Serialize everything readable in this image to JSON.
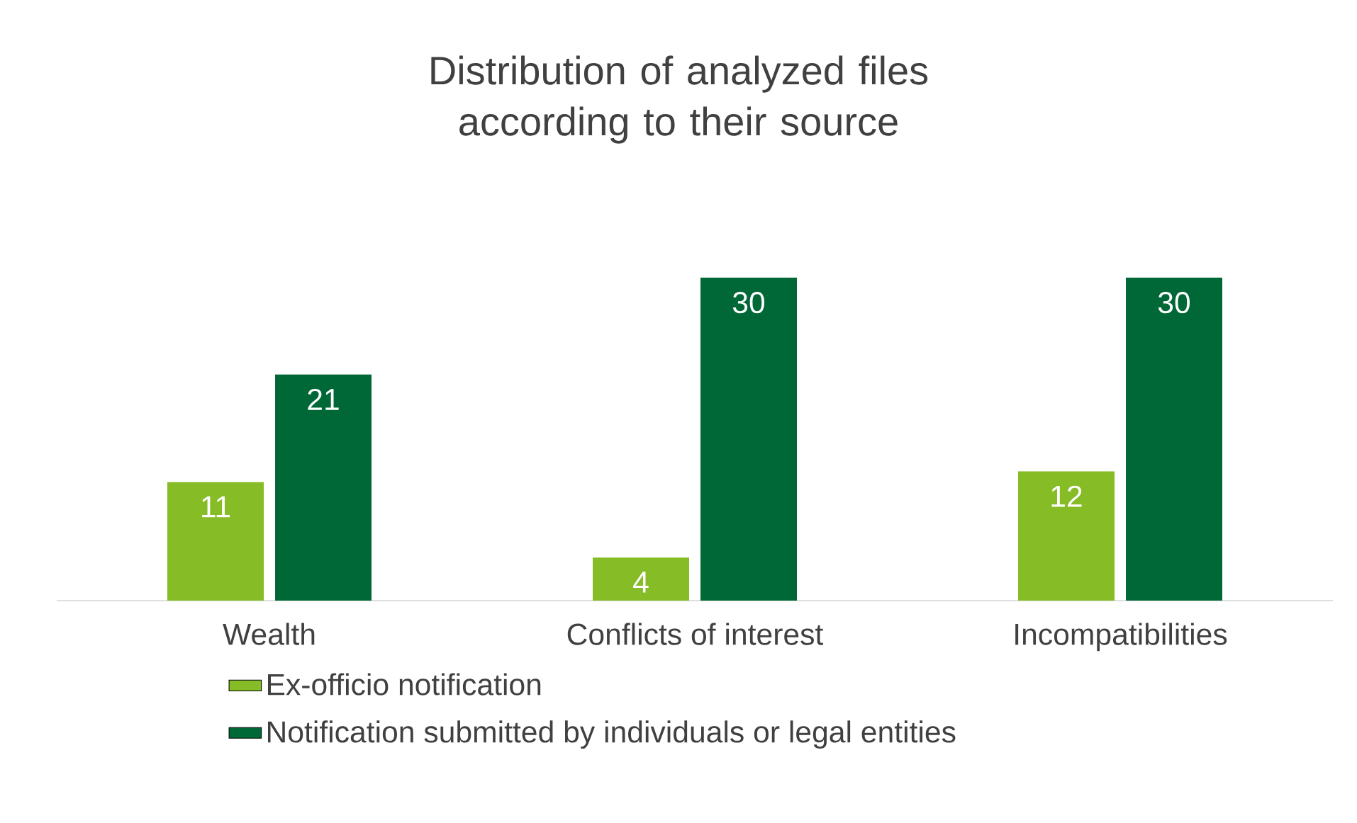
{
  "chart_data": {
    "type": "bar",
    "title": "Distribution of analyzed files according to their source",
    "categories": [
      "Wealth",
      "Conflicts of interest",
      "Incompatibilities"
    ],
    "series": [
      {
        "name": "Ex-officio notification",
        "color": "#86bc25",
        "values": [
          11,
          4,
          12
        ]
      },
      {
        "name": "Notification submitted by individuals or legal entities",
        "color": "#006837",
        "values": [
          21,
          30,
          30
        ]
      }
    ],
    "data_labels": true,
    "legend": "bottom"
  }
}
